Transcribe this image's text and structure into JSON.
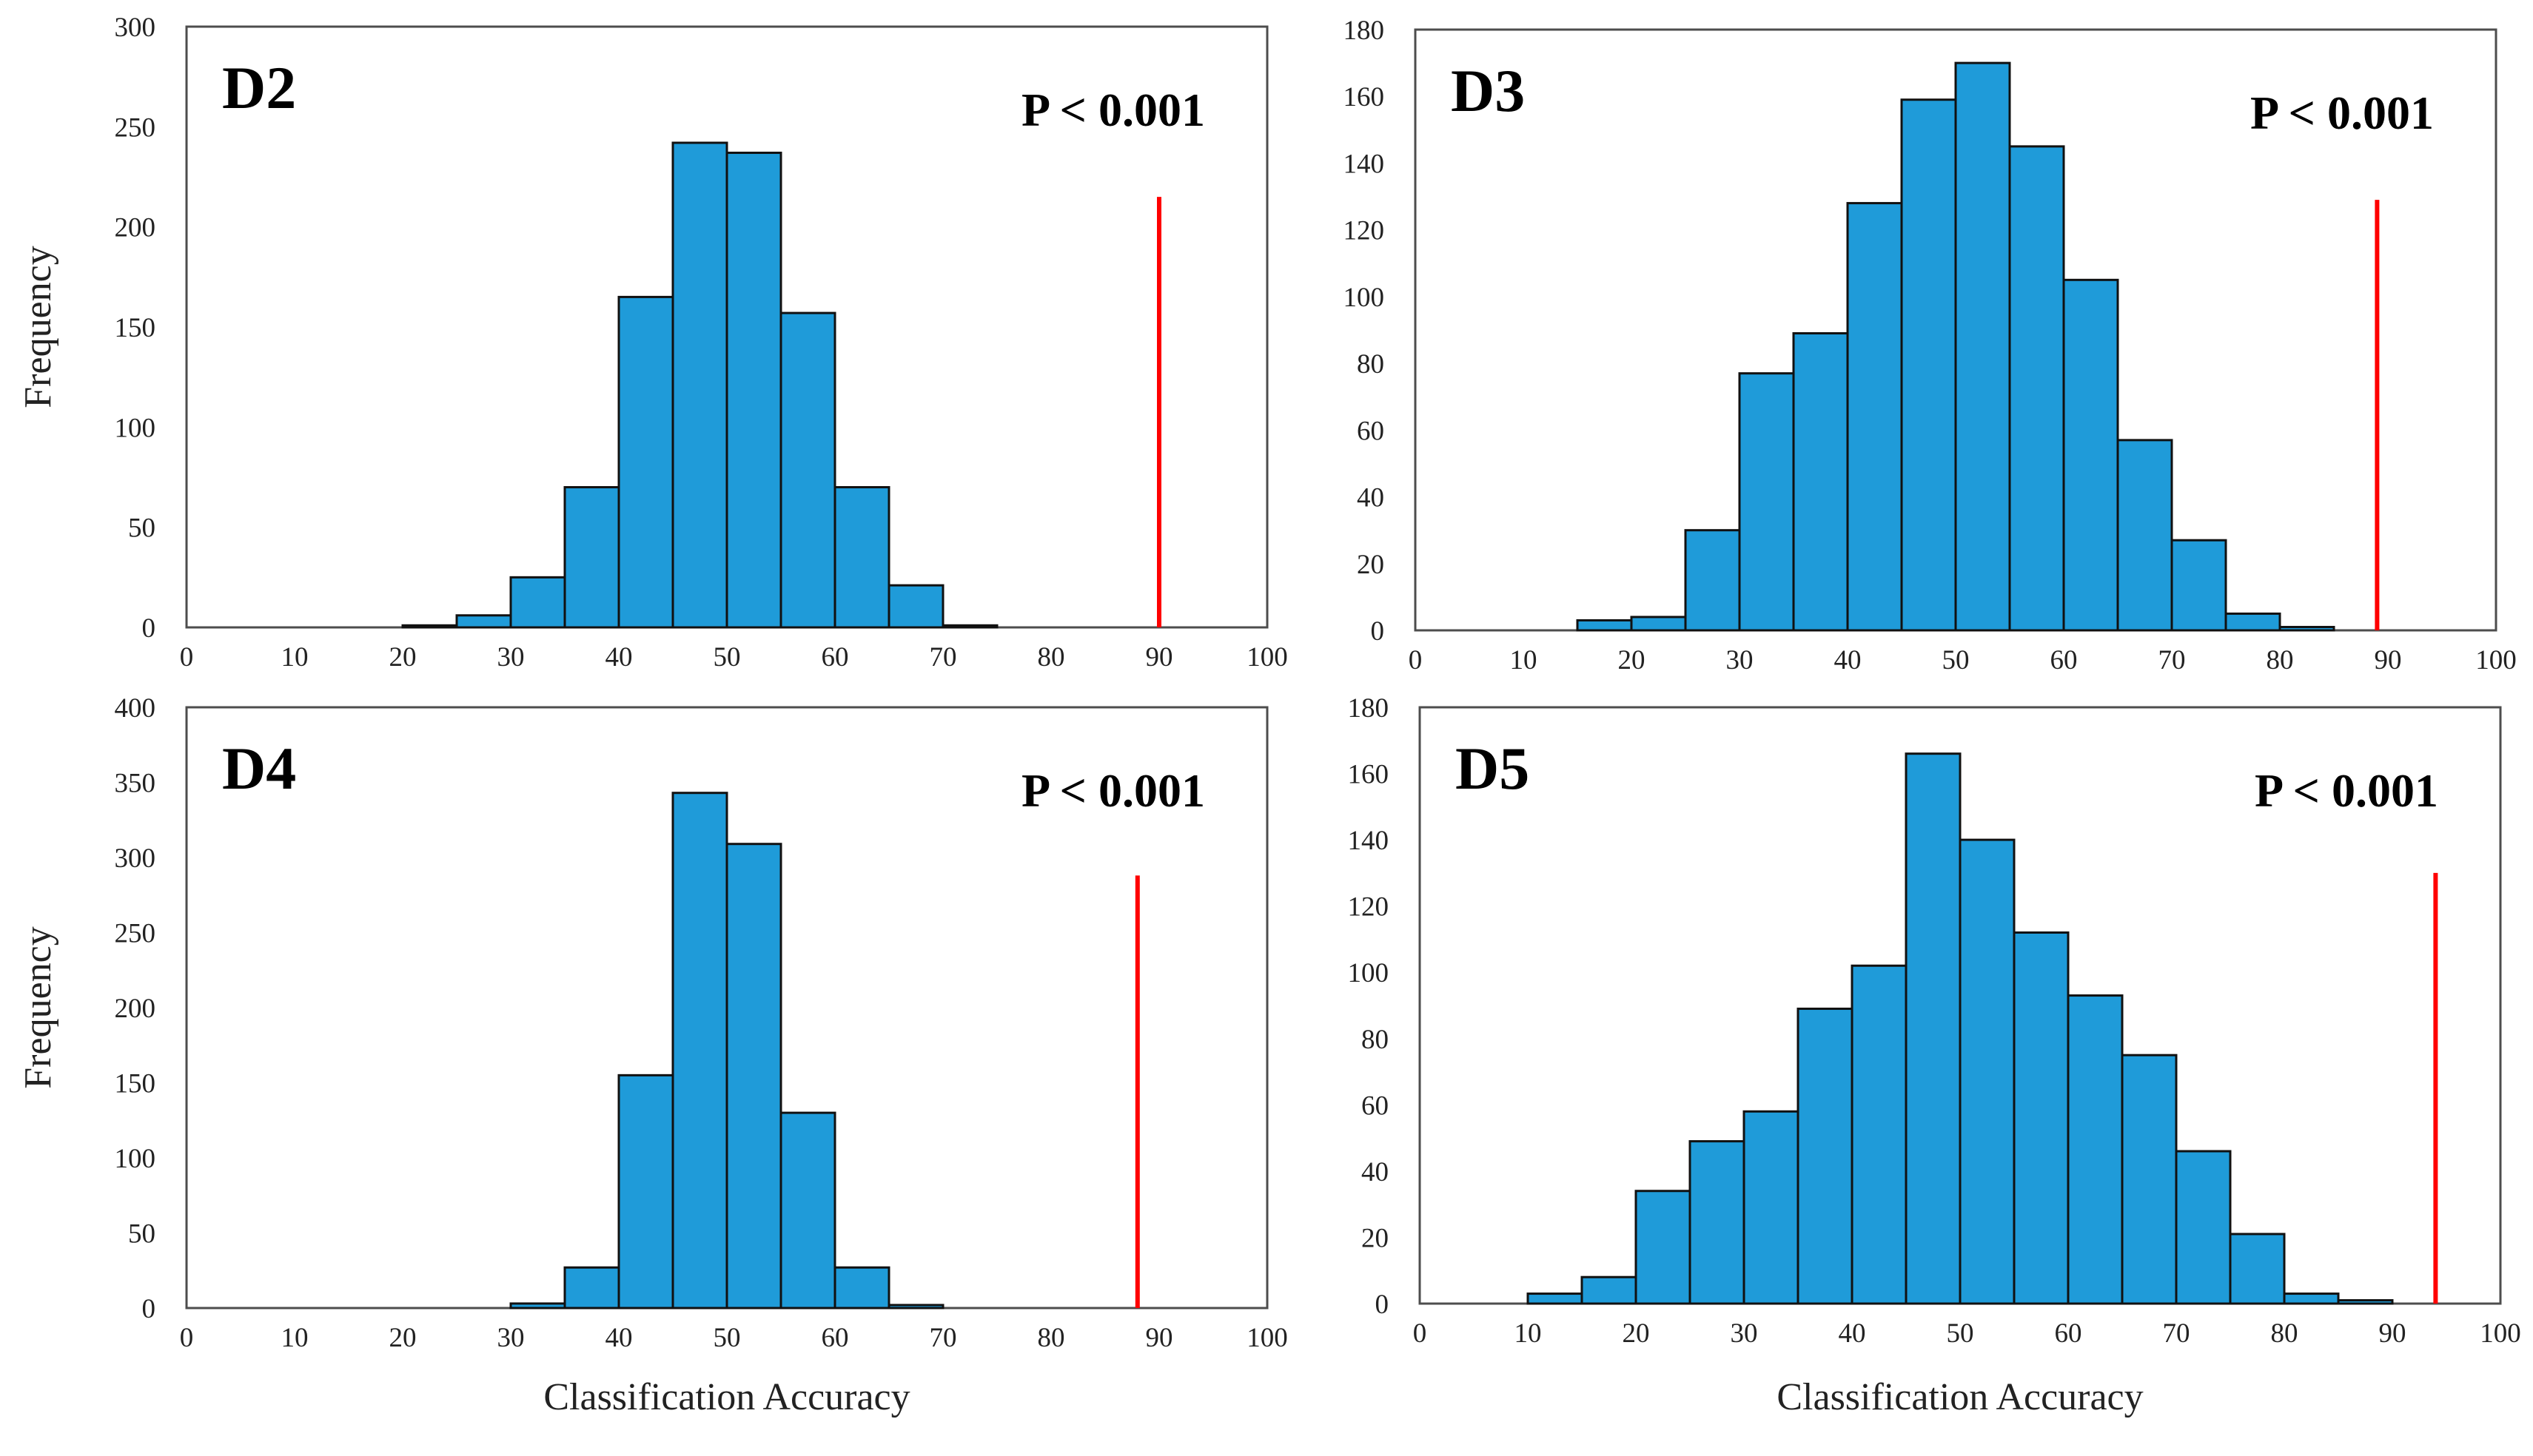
{
  "figure": {
    "accent_color": "#1f9bd9",
    "bar_outline": "#111111",
    "marker_color": "#ff0000"
  },
  "chart_data": [
    {
      "type": "bar",
      "title": "D2",
      "annotation": "P < 0.001",
      "xlabel": "",
      "ylabel": "Frequency",
      "xlim": [
        0,
        100
      ],
      "ylim": [
        0,
        300
      ],
      "xticks": [
        0,
        10,
        20,
        30,
        40,
        50,
        60,
        70,
        80,
        90,
        100
      ],
      "yticks": [
        0,
        50,
        100,
        150,
        200,
        250,
        300
      ],
      "bin_width": 5,
      "bins": [
        20,
        25,
        30,
        35,
        40,
        45,
        50,
        55,
        60,
        65,
        70
      ],
      "values": [
        1,
        6,
        25,
        70,
        165,
        242,
        237,
        157,
        70,
        21,
        1
      ],
      "marker_x": 90,
      "marker_height": 215
    },
    {
      "type": "bar",
      "title": "D3",
      "annotation": "P < 0.001",
      "xlabel": "",
      "ylabel": "",
      "xlim": [
        0,
        100
      ],
      "ylim": [
        0,
        180
      ],
      "xticks": [
        0,
        10,
        20,
        30,
        40,
        50,
        60,
        70,
        80,
        90,
        100
      ],
      "yticks": [
        0,
        20,
        40,
        60,
        80,
        100,
        120,
        140,
        160,
        180
      ],
      "bin_width": 5,
      "bins": [
        15,
        20,
        25,
        30,
        35,
        40,
        45,
        50,
        55,
        60,
        65,
        70,
        75,
        80
      ],
      "values": [
        3,
        4,
        30,
        77,
        89,
        128,
        159,
        170,
        145,
        105,
        57,
        27,
        5,
        1
      ],
      "marker_x": 89,
      "marker_height": 129
    },
    {
      "type": "bar",
      "title": "D4",
      "annotation": "P < 0.001",
      "xlabel": "Classification Accuracy",
      "ylabel": "Frequency",
      "xlim": [
        0,
        100
      ],
      "ylim": [
        0,
        400
      ],
      "xticks": [
        0,
        10,
        20,
        30,
        40,
        50,
        60,
        70,
        80,
        90,
        100
      ],
      "yticks": [
        0,
        50,
        100,
        150,
        200,
        250,
        300,
        350,
        400
      ],
      "bin_width": 5,
      "bins": [
        30,
        35,
        40,
        45,
        50,
        55,
        60,
        65
      ],
      "values": [
        3,
        27,
        155,
        343,
        309,
        130,
        27,
        2
      ],
      "marker_x": 88,
      "marker_height": 288
    },
    {
      "type": "bar",
      "title": "D5",
      "annotation": "P < 0.001",
      "xlabel": "Classification Accuracy",
      "ylabel": "",
      "xlim": [
        0,
        100
      ],
      "ylim": [
        0,
        180
      ],
      "xticks": [
        0,
        10,
        20,
        30,
        40,
        50,
        60,
        70,
        80,
        90,
        100
      ],
      "yticks": [
        0,
        20,
        40,
        60,
        80,
        100,
        120,
        140,
        160,
        180
      ],
      "bin_width": 5,
      "bins": [
        10,
        15,
        20,
        25,
        30,
        35,
        40,
        45,
        50,
        55,
        60,
        65,
        70,
        75,
        80,
        85
      ],
      "values": [
        3,
        8,
        34,
        49,
        58,
        89,
        102,
        166,
        140,
        112,
        93,
        75,
        46,
        21,
        3,
        1
      ],
      "marker_x": 94,
      "marker_height": 130
    }
  ]
}
